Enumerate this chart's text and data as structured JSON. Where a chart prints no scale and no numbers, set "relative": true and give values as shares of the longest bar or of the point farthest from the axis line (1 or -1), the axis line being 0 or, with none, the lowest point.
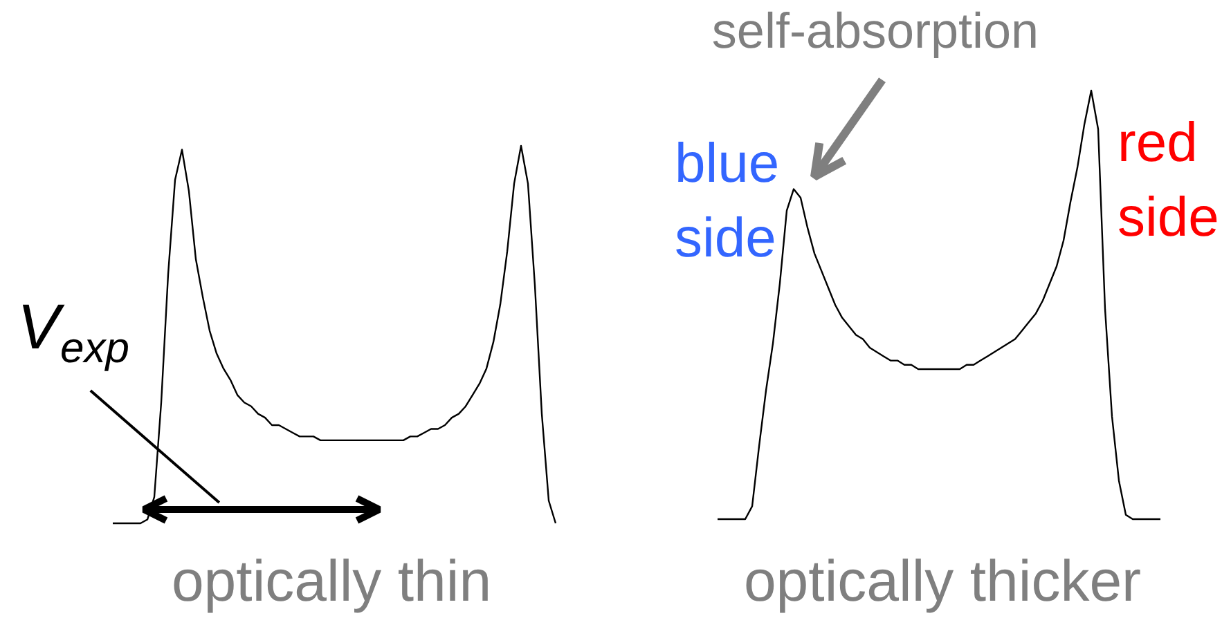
{
  "chart_data": [
    {
      "type": "line",
      "relative": true,
      "xlabel": "optically thin",
      "annotations": [
        "V$_{exp}$"
      ],
      "categories": [
        null,
        null,
        null,
        null,
        null,
        null,
        null,
        null,
        null,
        null,
        null,
        null,
        null,
        null,
        null,
        null,
        null,
        null,
        null,
        null,
        null,
        null,
        null,
        null,
        null,
        null,
        null,
        null,
        null,
        null,
        null,
        null,
        null,
        null,
        null,
        null,
        null,
        null,
        null,
        null,
        null,
        null,
        null,
        null,
        null,
        null,
        null,
        null,
        null,
        null,
        null,
        null,
        null,
        null,
        null,
        null,
        null,
        null,
        null,
        null,
        null,
        null,
        null,
        null,
        null
      ],
      "series": [
        {
          "color": "#000000",
          "values": [
            0,
            0,
            0,
            0,
            0,
            0.01,
            0.07,
            0.32,
            0.66,
            0.91,
            0.99,
            0.88,
            0.7,
            0.6,
            0.51,
            0.45,
            0.41,
            0.38,
            0.34,
            0.32,
            0.31,
            0.29,
            0.28,
            0.26,
            0.26,
            0.25,
            0.24,
            0.23,
            0.23,
            0.23,
            0.22,
            0.22,
            0.22,
            0.22,
            0.22,
            0.22,
            0.22,
            0.22,
            0.22,
            0.22,
            0.22,
            0.22,
            0.22,
            0.23,
            0.23,
            0.24,
            0.25,
            0.25,
            0.26,
            0.28,
            0.29,
            0.31,
            0.34,
            0.37,
            0.41,
            0.48,
            0.58,
            0.72,
            0.9,
            1.0,
            0.9,
            0.63,
            0.29,
            0.06,
            0
          ]
        }
      ]
    },
    {
      "type": "line",
      "relative": true,
      "xlabel": "optically thicker",
      "annotations": [
        "self-absorption",
        "blue side",
        "red side"
      ],
      "categories": [
        null,
        null,
        null,
        null,
        null,
        null,
        null,
        null,
        null,
        null,
        null,
        null,
        null,
        null,
        null,
        null,
        null,
        null,
        null,
        null,
        null,
        null,
        null,
        null,
        null,
        null,
        null,
        null,
        null,
        null,
        null,
        null,
        null,
        null,
        null,
        null,
        null,
        null,
        null,
        null,
        null,
        null,
        null,
        null,
        null,
        null,
        null,
        null,
        null,
        null,
        null,
        null,
        null,
        null,
        null,
        null,
        null,
        null,
        null,
        null,
        null,
        null,
        null,
        null,
        null
      ],
      "series": [
        {
          "color": "#000000",
          "values": [
            0,
            0,
            0,
            0,
            0,
            0.03,
            0.17,
            0.3,
            0.41,
            0.55,
            0.72,
            0.77,
            0.75,
            0.68,
            0.62,
            0.58,
            0.54,
            0.5,
            0.47,
            0.45,
            0.43,
            0.42,
            0.4,
            0.39,
            0.38,
            0.37,
            0.37,
            0.36,
            0.36,
            0.35,
            0.35,
            0.35,
            0.35,
            0.35,
            0.35,
            0.35,
            0.36,
            0.36,
            0.37,
            0.38,
            0.39,
            0.4,
            0.41,
            0.42,
            0.44,
            0.46,
            0.48,
            0.51,
            0.55,
            0.59,
            0.65,
            0.74,
            0.82,
            0.92,
            1.0,
            0.91,
            0.49,
            0.24,
            0.09,
            0.01,
            0,
            0,
            0,
            0,
            0
          ]
        }
      ]
    }
  ]
}
